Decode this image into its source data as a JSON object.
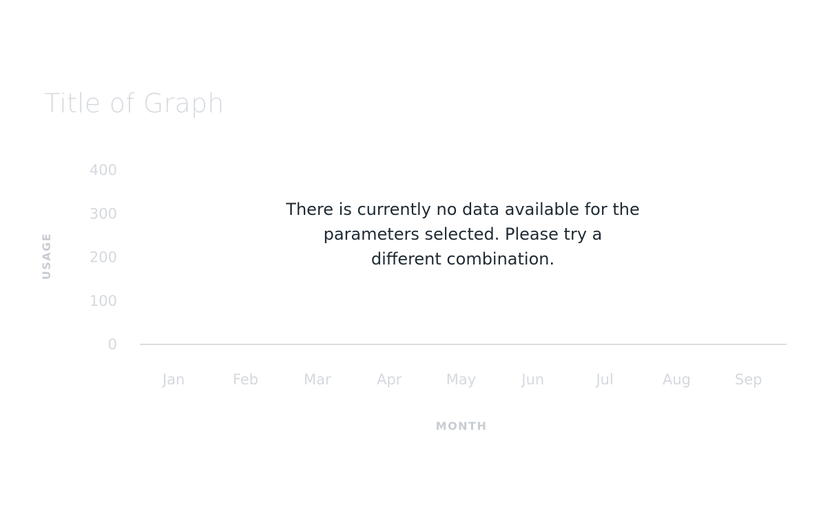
{
  "chart_data": {
    "type": "line",
    "title": "Title of Graph",
    "xlabel": "MONTH",
    "ylabel": "USAGE",
    "categories": [
      "Jan",
      "Feb",
      "Mar",
      "Apr",
      "May",
      "Jun",
      "Jul",
      "Aug",
      "Sep"
    ],
    "y_ticks": [
      "400",
      "300",
      "200",
      "100",
      "0"
    ],
    "ylim": [
      0,
      400
    ],
    "series": [],
    "grid": false,
    "empty_message": [
      "There is currently no data available for the",
      "parameters selected. Please try a",
      "different combination."
    ]
  },
  "colors": {
    "muted_text": "#d5d9de",
    "axis_line": "#d0d4d9",
    "message_text": "#1f2a33"
  }
}
